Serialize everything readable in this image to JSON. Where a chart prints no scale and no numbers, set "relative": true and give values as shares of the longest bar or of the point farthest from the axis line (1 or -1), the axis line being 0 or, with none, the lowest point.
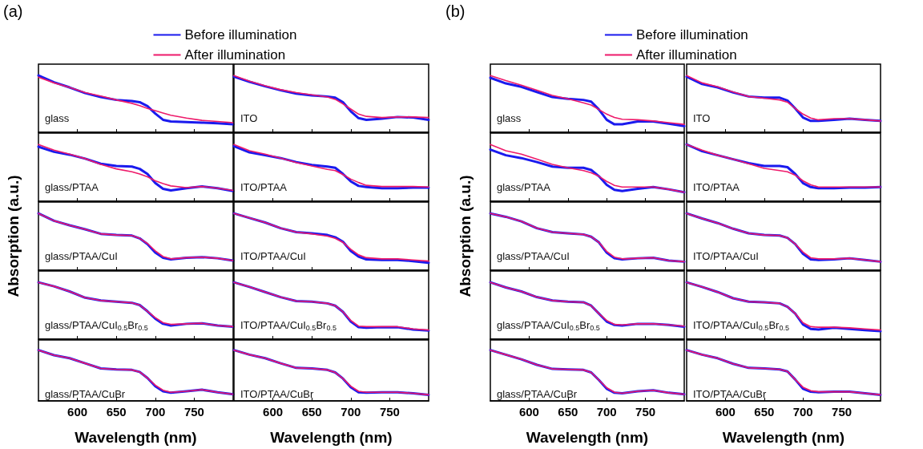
{
  "chart_data": [
    {
      "type": "line",
      "relative": true,
      "title": "(a)",
      "legend": "top",
      "tick_labels": false,
      "marker": "none",
      "line_style": "solid",
      "xlim": [
        550,
        800
      ],
      "xticks": [
        600,
        650,
        700,
        750
      ],
      "annotations": [
        "glass"
      ],
      "x": [
        550,
        570,
        590,
        610,
        630,
        650,
        670,
        680,
        690,
        700,
        710,
        720,
        740,
        760,
        780,
        800
      ],
      "series": [
        {
          "name": "Before illumination",
          "color": "#1a1aee",
          "values": [
            1,
            0.88,
            0.79,
            0.69,
            0.62,
            0.57,
            0.55,
            0.53,
            0.46,
            0.33,
            0.22,
            0.19,
            0.18,
            0.17,
            0.16,
            0.14
          ]
        },
        {
          "name": "After illumination",
          "color": "#ee1a6a",
          "values": [
            0.97,
            0.87,
            0.79,
            0.7,
            0.64,
            0.57,
            0.51,
            0.47,
            0.42,
            0.38,
            0.34,
            0.3,
            0.25,
            0.21,
            0.19,
            0.17
          ]
        }
      ]
    },
    {
      "type": "line",
      "relative": true,
      "tick_labels": false,
      "marker": "none",
      "line_style": "solid",
      "xlim": [
        550,
        800
      ],
      "xticks": [
        600,
        650,
        700,
        750
      ],
      "annotations": [
        "ITO"
      ],
      "x": [
        550,
        570,
        590,
        610,
        630,
        650,
        670,
        680,
        690,
        700,
        710,
        720,
        740,
        760,
        780,
        800
      ],
      "series": [
        {
          "color": "#1a1aee",
          "values": [
            0.98,
            0.89,
            0.81,
            0.74,
            0.68,
            0.65,
            0.63,
            0.61,
            0.53,
            0.37,
            0.25,
            0.22,
            0.24,
            0.27,
            0.26,
            0.22
          ]
        },
        {
          "color": "#ee1a6a",
          "values": [
            1,
            0.9,
            0.82,
            0.75,
            0.7,
            0.66,
            0.62,
            0.58,
            0.5,
            0.41,
            0.32,
            0.28,
            0.26,
            0.27,
            0.27,
            0.26
          ]
        }
      ]
    },
    {
      "type": "line",
      "relative": true,
      "tick_labels": false,
      "marker": "none",
      "line_style": "solid",
      "xlim": [
        550,
        800
      ],
      "xticks": [
        600,
        650,
        700,
        750
      ],
      "annotations": [
        "glass/PTAA"
      ],
      "x": [
        550,
        570,
        590,
        610,
        630,
        650,
        670,
        680,
        690,
        700,
        710,
        720,
        740,
        760,
        780,
        800
      ],
      "series": [
        {
          "color": "#1a1aee",
          "values": [
            0.96,
            0.87,
            0.82,
            0.75,
            0.66,
            0.62,
            0.61,
            0.57,
            0.48,
            0.32,
            0.22,
            0.19,
            0.23,
            0.26,
            0.23,
            0.18
          ]
        },
        {
          "color": "#ee1a6a",
          "values": [
            1,
            0.9,
            0.83,
            0.75,
            0.65,
            0.57,
            0.52,
            0.48,
            0.43,
            0.36,
            0.31,
            0.27,
            0.24,
            0.26,
            0.23,
            0.19
          ]
        }
      ]
    },
    {
      "type": "line",
      "relative": true,
      "tick_labels": false,
      "marker": "none",
      "line_style": "solid",
      "xlim": [
        550,
        800
      ],
      "xticks": [
        600,
        650,
        700,
        750
      ],
      "annotations": [
        "ITO/PTAA"
      ],
      "x": [
        550,
        570,
        590,
        610,
        630,
        650,
        670,
        680,
        690,
        700,
        710,
        720,
        740,
        760,
        780,
        800
      ],
      "series": [
        {
          "color": "#1a1aee",
          "values": [
            0.97,
            0.86,
            0.81,
            0.76,
            0.69,
            0.64,
            0.61,
            0.59,
            0.48,
            0.35,
            0.27,
            0.25,
            0.23,
            0.23,
            0.24,
            0.24
          ]
        },
        {
          "color": "#ee1a6a",
          "values": [
            1,
            0.89,
            0.83,
            0.76,
            0.68,
            0.62,
            0.56,
            0.54,
            0.47,
            0.39,
            0.33,
            0.28,
            0.26,
            0.26,
            0.26,
            0.25
          ]
        }
      ]
    },
    {
      "type": "line",
      "relative": true,
      "ylabel": "Absorption (a.u.)",
      "tick_labels": false,
      "marker": "none",
      "line_style": "solid",
      "xlim": [
        550,
        800
      ],
      "xticks": [
        600,
        650,
        700,
        750
      ],
      "annotations": [
        "glass/PTAA/CuI"
      ],
      "x": [
        550,
        570,
        590,
        610,
        630,
        650,
        670,
        680,
        690,
        700,
        710,
        720,
        740,
        760,
        780,
        800
      ],
      "series": [
        {
          "color": "#1a1aee",
          "values": [
            1,
            0.87,
            0.79,
            0.72,
            0.64,
            0.62,
            0.61,
            0.56,
            0.46,
            0.31,
            0.22,
            0.19,
            0.22,
            0.23,
            0.21,
            0.17
          ]
        },
        {
          "color": "#ee1a6a",
          "values": [
            1,
            0.87,
            0.79,
            0.72,
            0.64,
            0.62,
            0.61,
            0.56,
            0.47,
            0.34,
            0.24,
            0.2,
            0.22,
            0.23,
            0.21,
            0.17
          ]
        }
      ]
    },
    {
      "type": "line",
      "relative": true,
      "tick_labels": false,
      "marker": "none",
      "line_style": "solid",
      "xlim": [
        550,
        800
      ],
      "xticks": [
        600,
        650,
        700,
        750
      ],
      "annotations": [
        "ITO/PTAA/CuI"
      ],
      "x": [
        550,
        570,
        590,
        610,
        630,
        650,
        670,
        680,
        690,
        700,
        710,
        720,
        740,
        760,
        780,
        800
      ],
      "series": [
        {
          "color": "#1a1aee",
          "values": [
            1,
            0.92,
            0.84,
            0.74,
            0.67,
            0.65,
            0.62,
            0.58,
            0.5,
            0.34,
            0.24,
            0.19,
            0.18,
            0.18,
            0.16,
            0.13
          ]
        },
        {
          "color": "#ee1a6a",
          "values": [
            1,
            0.92,
            0.84,
            0.74,
            0.67,
            0.64,
            0.6,
            0.56,
            0.49,
            0.37,
            0.27,
            0.22,
            0.2,
            0.2,
            0.18,
            0.16
          ]
        }
      ]
    },
    {
      "type": "line",
      "relative": true,
      "tick_labels": false,
      "marker": "none",
      "line_style": "solid",
      "xlim": [
        550,
        800
      ],
      "xticks": [
        600,
        650,
        700,
        750
      ],
      "annotations": [
        "glass/PTAA/CuI$_{0.5}$Br$_{0.5}$"
      ],
      "x": [
        550,
        570,
        590,
        610,
        630,
        650,
        670,
        680,
        690,
        700,
        710,
        720,
        740,
        760,
        780,
        800
      ],
      "series": [
        {
          "color": "#1a1aee",
          "values": [
            1,
            0.93,
            0.84,
            0.73,
            0.68,
            0.66,
            0.64,
            0.6,
            0.49,
            0.36,
            0.27,
            0.24,
            0.27,
            0.28,
            0.24,
            0.22
          ]
        },
        {
          "color": "#ee1a6a",
          "values": [
            1,
            0.93,
            0.84,
            0.73,
            0.68,
            0.66,
            0.64,
            0.6,
            0.49,
            0.38,
            0.29,
            0.26,
            0.27,
            0.28,
            0.24,
            0.22
          ]
        }
      ]
    },
    {
      "type": "line",
      "relative": true,
      "tick_labels": false,
      "marker": "none",
      "line_style": "solid",
      "xlim": [
        550,
        800
      ],
      "xticks": [
        600,
        650,
        700,
        750
      ],
      "annotations": [
        "ITO/PTAA/CuI$_{0.5}$Br$_{0.5}$"
      ],
      "x": [
        550,
        570,
        590,
        610,
        630,
        650,
        670,
        680,
        690,
        700,
        710,
        720,
        740,
        760,
        780,
        800
      ],
      "series": [
        {
          "color": "#1a1aee",
          "values": [
            1,
            0.92,
            0.83,
            0.74,
            0.67,
            0.66,
            0.63,
            0.59,
            0.48,
            0.31,
            0.21,
            0.2,
            0.21,
            0.21,
            0.17,
            0.15
          ]
        },
        {
          "color": "#ee1a6a",
          "values": [
            1,
            0.92,
            0.83,
            0.74,
            0.67,
            0.66,
            0.63,
            0.59,
            0.48,
            0.33,
            0.23,
            0.22,
            0.22,
            0.22,
            0.18,
            0.16
          ]
        }
      ]
    },
    {
      "type": "line",
      "relative": true,
      "xlabel": "Wavelength (nm)",
      "tick_labels": "x",
      "marker": "none",
      "line_style": "solid",
      "xlim": [
        550,
        800
      ],
      "xticks": [
        600,
        650,
        700,
        750
      ],
      "annotations": [
        "glass/PTAA/CuBr"
      ],
      "x": [
        550,
        570,
        590,
        610,
        630,
        650,
        670,
        680,
        690,
        700,
        710,
        720,
        740,
        760,
        780,
        800
      ],
      "series": [
        {
          "color": "#1a1aee",
          "values": [
            1,
            0.9,
            0.84,
            0.74,
            0.64,
            0.62,
            0.61,
            0.57,
            0.45,
            0.29,
            0.19,
            0.16,
            0.19,
            0.22,
            0.17,
            0.13
          ]
        },
        {
          "color": "#ee1a6a",
          "values": [
            1,
            0.9,
            0.84,
            0.74,
            0.64,
            0.62,
            0.61,
            0.57,
            0.45,
            0.31,
            0.21,
            0.17,
            0.19,
            0.22,
            0.17,
            0.13
          ]
        }
      ]
    },
    {
      "type": "line",
      "relative": true,
      "xlabel": "Wavelength (nm)",
      "tick_labels": "x",
      "marker": "none",
      "line_style": "solid",
      "xlim": [
        550,
        800
      ],
      "xticks": [
        600,
        650,
        700,
        750
      ],
      "annotations": [
        "ITO/PTAA/CuBr"
      ],
      "x": [
        550,
        570,
        590,
        610,
        630,
        650,
        670,
        680,
        690,
        700,
        710,
        720,
        740,
        760,
        780,
        800
      ],
      "series": [
        {
          "color": "#1a1aee",
          "values": [
            1,
            0.91,
            0.84,
            0.74,
            0.65,
            0.64,
            0.61,
            0.56,
            0.44,
            0.27,
            0.17,
            0.16,
            0.17,
            0.17,
            0.15,
            0.12
          ]
        },
        {
          "color": "#ee1a6a",
          "values": [
            1,
            0.91,
            0.84,
            0.74,
            0.65,
            0.64,
            0.61,
            0.56,
            0.44,
            0.29,
            0.19,
            0.17,
            0.17,
            0.17,
            0.15,
            0.12
          ]
        }
      ]
    },
    {
      "type": "line",
      "relative": true,
      "title": "(b)",
      "legend": "top",
      "tick_labels": false,
      "marker": "none",
      "line_style": "solid",
      "xlim": [
        550,
        800
      ],
      "xticks": [
        600,
        650,
        700,
        750
      ],
      "annotations": [
        "glass"
      ],
      "x": [
        550,
        570,
        590,
        610,
        630,
        650,
        670,
        680,
        690,
        700,
        710,
        720,
        740,
        760,
        780,
        800
      ],
      "series": [
        {
          "name": "Before illumination",
          "color": "#1a1aee",
          "values": [
            0.96,
            0.86,
            0.8,
            0.71,
            0.62,
            0.59,
            0.57,
            0.54,
            0.4,
            0.22,
            0.14,
            0.14,
            0.19,
            0.19,
            0.15,
            0.11
          ]
        },
        {
          "name": "After illumination",
          "color": "#ee1a6a",
          "values": [
            1,
            0.91,
            0.83,
            0.74,
            0.65,
            0.59,
            0.52,
            0.48,
            0.4,
            0.32,
            0.26,
            0.23,
            0.22,
            0.2,
            0.17,
            0.14
          ]
        }
      ]
    },
    {
      "type": "line",
      "relative": true,
      "tick_labels": false,
      "marker": "none",
      "line_style": "solid",
      "xlim": [
        550,
        800
      ],
      "xticks": [
        600,
        650,
        700,
        750
      ],
      "annotations": [
        "ITO"
      ],
      "x": [
        550,
        570,
        590,
        610,
        630,
        650,
        670,
        680,
        690,
        700,
        710,
        720,
        740,
        760,
        780,
        800
      ],
      "series": [
        {
          "color": "#1a1aee",
          "values": [
            0.98,
            0.85,
            0.79,
            0.7,
            0.63,
            0.61,
            0.61,
            0.56,
            0.42,
            0.26,
            0.2,
            0.2,
            0.22,
            0.24,
            0.22,
            0.2
          ]
        },
        {
          "color": "#ee1a6a",
          "values": [
            1,
            0.87,
            0.8,
            0.71,
            0.63,
            0.6,
            0.57,
            0.53,
            0.42,
            0.32,
            0.25,
            0.22,
            0.24,
            0.24,
            0.22,
            0.2
          ]
        }
      ]
    },
    {
      "type": "line",
      "relative": true,
      "tick_labels": false,
      "marker": "none",
      "line_style": "solid",
      "xlim": [
        550,
        800
      ],
      "xticks": [
        600,
        650,
        700,
        750
      ],
      "annotations": [
        "glass/PTAA"
      ],
      "x": [
        550,
        570,
        590,
        610,
        630,
        650,
        670,
        680,
        690,
        700,
        710,
        720,
        740,
        760,
        780,
        800
      ],
      "series": [
        {
          "color": "#1a1aee",
          "values": [
            0.91,
            0.81,
            0.76,
            0.69,
            0.61,
            0.59,
            0.59,
            0.55,
            0.44,
            0.29,
            0.2,
            0.18,
            0.22,
            0.25,
            0.21,
            0.16
          ]
        },
        {
          "color": "#ee1a6a",
          "values": [
            1,
            0.89,
            0.83,
            0.74,
            0.65,
            0.59,
            0.54,
            0.5,
            0.44,
            0.35,
            0.28,
            0.25,
            0.25,
            0.25,
            0.21,
            0.16
          ]
        }
      ]
    },
    {
      "type": "line",
      "relative": true,
      "tick_labels": false,
      "marker": "none",
      "line_style": "solid",
      "xlim": [
        550,
        800
      ],
      "xticks": [
        600,
        650,
        700,
        750
      ],
      "annotations": [
        "ITO/PTAA"
      ],
      "x": [
        550,
        570,
        590,
        610,
        630,
        650,
        670,
        680,
        690,
        700,
        710,
        720,
        740,
        760,
        780,
        800
      ],
      "series": [
        {
          "color": "#1a1aee",
          "values": [
            1,
            0.88,
            0.81,
            0.74,
            0.67,
            0.62,
            0.62,
            0.6,
            0.48,
            0.32,
            0.25,
            0.23,
            0.23,
            0.24,
            0.24,
            0.25
          ]
        },
        {
          "color": "#ee1a6a",
          "values": [
            1,
            0.9,
            0.81,
            0.74,
            0.66,
            0.58,
            0.54,
            0.52,
            0.46,
            0.36,
            0.29,
            0.25,
            0.25,
            0.25,
            0.25,
            0.25
          ]
        }
      ]
    },
    {
      "type": "line",
      "relative": true,
      "ylabel": "Absorption (a.u.)",
      "tick_labels": false,
      "marker": "none",
      "line_style": "solid",
      "xlim": [
        550,
        800
      ],
      "xticks": [
        600,
        650,
        700,
        750
      ],
      "annotations": [
        "glass/PTAA/CuI"
      ],
      "x": [
        550,
        570,
        590,
        610,
        630,
        650,
        670,
        680,
        690,
        700,
        710,
        720,
        740,
        760,
        780,
        800
      ],
      "series": [
        {
          "color": "#1a1aee",
          "values": [
            1,
            0.94,
            0.86,
            0.74,
            0.67,
            0.65,
            0.63,
            0.59,
            0.49,
            0.31,
            0.21,
            0.19,
            0.21,
            0.22,
            0.17,
            0.15
          ]
        },
        {
          "color": "#ee1a6a",
          "values": [
            1,
            0.94,
            0.86,
            0.74,
            0.67,
            0.65,
            0.63,
            0.59,
            0.49,
            0.33,
            0.23,
            0.2,
            0.21,
            0.22,
            0.17,
            0.15
          ]
        }
      ]
    },
    {
      "type": "line",
      "relative": true,
      "tick_labels": false,
      "marker": "none",
      "line_style": "solid",
      "xlim": [
        550,
        800
      ],
      "xticks": [
        600,
        650,
        700,
        750
      ],
      "annotations": [
        "ITO/PTAA/CuI"
      ],
      "x": [
        550,
        570,
        590,
        610,
        630,
        650,
        670,
        680,
        690,
        700,
        710,
        720,
        740,
        760,
        780,
        800
      ],
      "series": [
        {
          "color": "#1a1aee",
          "values": [
            1,
            0.91,
            0.83,
            0.73,
            0.65,
            0.62,
            0.61,
            0.57,
            0.46,
            0.29,
            0.19,
            0.18,
            0.19,
            0.21,
            0.18,
            0.15
          ]
        },
        {
          "color": "#ee1a6a",
          "values": [
            1,
            0.91,
            0.83,
            0.73,
            0.65,
            0.62,
            0.61,
            0.57,
            0.46,
            0.32,
            0.22,
            0.2,
            0.2,
            0.21,
            0.18,
            0.15
          ]
        }
      ]
    },
    {
      "type": "line",
      "relative": true,
      "tick_labels": false,
      "marker": "none",
      "line_style": "solid",
      "xlim": [
        550,
        800
      ],
      "xticks": [
        600,
        650,
        700,
        750
      ],
      "annotations": [
        "glass/PTAA/CuI$_{0.5}$Br$_{0.5}$"
      ],
      "x": [
        550,
        570,
        590,
        610,
        630,
        650,
        670,
        680,
        690,
        700,
        710,
        720,
        740,
        760,
        780,
        800
      ],
      "series": [
        {
          "color": "#1a1aee",
          "values": [
            1,
            0.91,
            0.84,
            0.74,
            0.68,
            0.66,
            0.65,
            0.59,
            0.45,
            0.31,
            0.25,
            0.24,
            0.27,
            0.27,
            0.25,
            0.22
          ]
        },
        {
          "color": "#ee1a6a",
          "values": [
            1,
            0.91,
            0.84,
            0.74,
            0.68,
            0.66,
            0.65,
            0.59,
            0.45,
            0.33,
            0.26,
            0.25,
            0.27,
            0.27,
            0.25,
            0.23
          ]
        }
      ]
    },
    {
      "type": "line",
      "relative": true,
      "tick_labels": false,
      "marker": "none",
      "line_style": "solid",
      "xlim": [
        550,
        800
      ],
      "xticks": [
        600,
        650,
        700,
        750
      ],
      "annotations": [
        "ITO/PTAA/CuI$_{0.5}$Br$_{0.5}$"
      ],
      "x": [
        550,
        570,
        590,
        610,
        630,
        650,
        670,
        680,
        690,
        700,
        710,
        720,
        740,
        760,
        780,
        800
      ],
      "series": [
        {
          "color": "#1a1aee",
          "values": [
            1,
            0.92,
            0.83,
            0.72,
            0.66,
            0.65,
            0.63,
            0.57,
            0.45,
            0.26,
            0.18,
            0.17,
            0.2,
            0.18,
            0.16,
            0.14
          ]
        },
        {
          "color": "#ee1a6a",
          "values": [
            1,
            0.92,
            0.83,
            0.72,
            0.66,
            0.65,
            0.63,
            0.57,
            0.45,
            0.29,
            0.22,
            0.21,
            0.21,
            0.2,
            0.18,
            0.16
          ]
        }
      ]
    },
    {
      "type": "line",
      "relative": true,
      "xlabel": "Wavelength (nm)",
      "tick_labels": "x",
      "marker": "none",
      "line_style": "solid",
      "xlim": [
        550,
        800
      ],
      "xticks": [
        600,
        650,
        700,
        750
      ],
      "annotations": [
        "glass/PTAA/CuBr"
      ],
      "x": [
        550,
        570,
        590,
        610,
        630,
        650,
        670,
        680,
        690,
        700,
        710,
        720,
        740,
        760,
        780,
        800
      ],
      "series": [
        {
          "color": "#1a1aee",
          "values": [
            1,
            0.91,
            0.82,
            0.71,
            0.63,
            0.62,
            0.61,
            0.56,
            0.41,
            0.24,
            0.16,
            0.15,
            0.19,
            0.21,
            0.16,
            0.13
          ]
        },
        {
          "color": "#ee1a6a",
          "values": [
            1,
            0.91,
            0.82,
            0.71,
            0.63,
            0.62,
            0.61,
            0.56,
            0.41,
            0.26,
            0.17,
            0.15,
            0.19,
            0.21,
            0.16,
            0.13
          ]
        }
      ]
    },
    {
      "type": "line",
      "relative": true,
      "xlabel": "Wavelength (nm)",
      "tick_labels": "x",
      "marker": "none",
      "line_style": "solid",
      "xlim": [
        550,
        800
      ],
      "xticks": [
        600,
        650,
        700,
        750
      ],
      "annotations": [
        "ITO/PTAA/CuBr"
      ],
      "x": [
        550,
        570,
        590,
        610,
        630,
        650,
        670,
        680,
        690,
        700,
        710,
        720,
        740,
        760,
        780,
        800
      ],
      "series": [
        {
          "color": "#1a1aee",
          "values": [
            1,
            0.91,
            0.84,
            0.73,
            0.65,
            0.64,
            0.62,
            0.58,
            0.42,
            0.24,
            0.18,
            0.17,
            0.18,
            0.18,
            0.15,
            0.12
          ]
        },
        {
          "color": "#ee1a6a",
          "values": [
            1,
            0.91,
            0.84,
            0.73,
            0.65,
            0.64,
            0.62,
            0.58,
            0.42,
            0.27,
            0.2,
            0.18,
            0.18,
            0.18,
            0.15,
            0.12
          ]
        }
      ]
    }
  ]
}
